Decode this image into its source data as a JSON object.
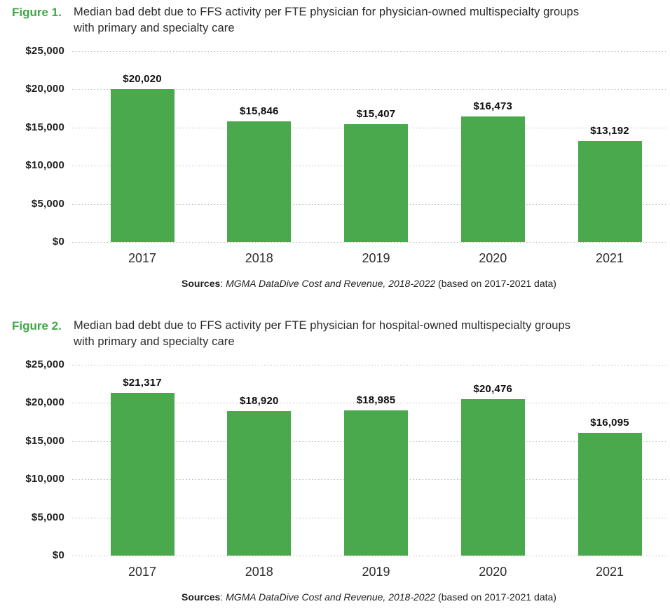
{
  "colors": {
    "accent_green": "#3fa845",
    "bar_green": "#4aa94d",
    "gridline_gray": "#b9b9b9",
    "title_text": "#2b2b2b",
    "tick_text": "#1e1e1e"
  },
  "chart_data": [
    {
      "type": "bar",
      "figure_label": "Figure 1.",
      "title": "Median bad debt due to FFS activity per FTE physician for physician-owned multispecialty groups with primary and specialty care",
      "title_lines": [
        "Median bad debt due to FFS activity per FTE physician for physician-owned multispecialty groups",
        "with primary and specialty care"
      ],
      "categories": [
        "2017",
        "2018",
        "2019",
        "2020",
        "2021"
      ],
      "values": [
        20020,
        15846,
        15407,
        16473,
        13192
      ],
      "value_labels": [
        "$20,020",
        "$15,846",
        "$15,407",
        "$16,473",
        "$13,192"
      ],
      "xlabel": "",
      "ylabel": "",
      "ylim": [
        0,
        25000
      ],
      "ytick_labels": [
        "$0",
        "$5,000",
        "$10,000",
        "$15,000",
        "$20,000",
        "$25,000"
      ],
      "grid": "horizontal-dotted",
      "legend": "none",
      "bar_color": "#4aa94d",
      "source": {
        "bold": "Sources",
        "sep": ": ",
        "italic": "MGMA DataDive Cost and Revenue, 2018-2022",
        "rest": " (based on 2017-2021 data)"
      }
    },
    {
      "type": "bar",
      "figure_label": "Figure 2.",
      "title": "Median bad debt due to FFS activity per FTE physician for hospital-owned multispecialty groups with primary and specialty care",
      "title_lines": [
        "Median bad debt due to FFS activity per FTE physician for hospital-owned multispecialty groups",
        "with primary and specialty care"
      ],
      "categories": [
        "2017",
        "2018",
        "2019",
        "2020",
        "2021"
      ],
      "values": [
        21317,
        18920,
        18985,
        20476,
        16095
      ],
      "value_labels": [
        "$21,317",
        "$18,920",
        "$18,985",
        "$20,476",
        "$16,095"
      ],
      "xlabel": "",
      "ylabel": "",
      "ylim": [
        0,
        25000
      ],
      "ytick_labels": [
        "$0",
        "$5,000",
        "$10,000",
        "$15,000",
        "$20,000",
        "$25,000"
      ],
      "grid": "horizontal-dotted",
      "legend": "none",
      "bar_color": "#4aa94d",
      "source": {
        "bold": "Sources",
        "sep": ": ",
        "italic": "MGMA DataDive Cost and Revenue, 2018-2022",
        "rest": " (based on 2017-2021 data)"
      }
    }
  ]
}
